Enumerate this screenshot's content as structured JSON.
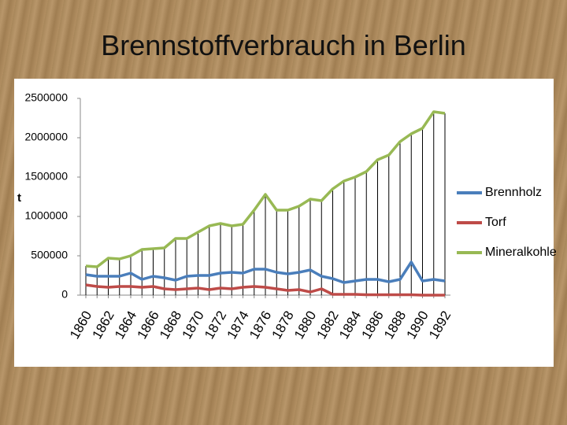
{
  "chart_data": {
    "type": "line",
    "title": "Brennstoffverbrauch in Berlin",
    "y_label": "t",
    "categories": [
      "1860",
      null,
      "1862",
      null,
      "1864",
      null,
      "1866",
      null,
      "1868",
      null,
      "1870",
      null,
      "1872",
      null,
      "1874",
      null,
      "1876",
      null,
      "1878",
      null,
      "1880",
      null,
      "1882",
      null,
      "1884",
      null,
      "1886",
      null,
      "1888",
      null,
      "1890",
      null,
      "1892"
    ],
    "series": [
      {
        "name": "Brennholz",
        "color": "#4a7ebb",
        "values": [
          260000,
          240000,
          240000,
          240000,
          280000,
          200000,
          240000,
          220000,
          190000,
          240000,
          250000,
          250000,
          280000,
          290000,
          280000,
          330000,
          330000,
          290000,
          270000,
          290000,
          320000,
          240000,
          210000,
          160000,
          180000,
          200000,
          200000,
          170000,
          200000,
          420000,
          180000,
          200000,
          180000
        ]
      },
      {
        "name": "Torf",
        "color": "#be4b48",
        "values": [
          130000,
          110000,
          100000,
          110000,
          110000,
          100000,
          110000,
          80000,
          70000,
          80000,
          90000,
          70000,
          90000,
          80000,
          100000,
          110000,
          100000,
          80000,
          60000,
          70000,
          40000,
          80000,
          10000,
          10000,
          10000,
          5000,
          5000,
          5000,
          5000,
          5000,
          0,
          0,
          0
        ]
      },
      {
        "name": "Mineralkohle",
        "color": "#98b954",
        "values": [
          370000,
          360000,
          470000,
          460000,
          500000,
          580000,
          590000,
          600000,
          720000,
          720000,
          800000,
          880000,
          910000,
          880000,
          900000,
          1080000,
          1280000,
          1080000,
          1080000,
          1130000,
          1220000,
          1200000,
          1350000,
          1450000,
          1500000,
          1570000,
          1720000,
          1780000,
          1950000,
          2050000,
          2120000,
          2330000,
          2310000
        ]
      }
    ],
    "ylim": [
      0,
      2500000
    ],
    "yticks": [
      0,
      500000,
      1000000,
      1500000,
      2000000,
      2500000
    ],
    "drop_lines": true,
    "legend": "right"
  }
}
